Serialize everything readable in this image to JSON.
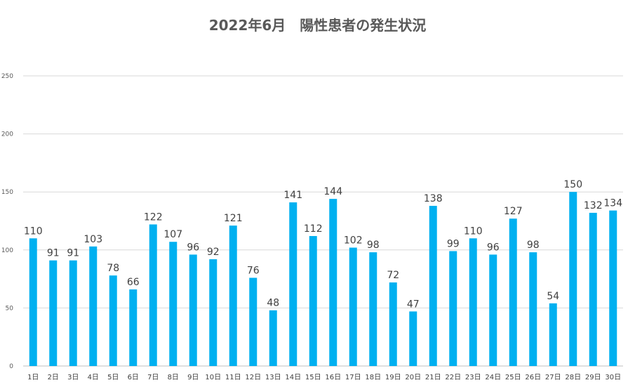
{
  "chart_data": {
    "type": "bar",
    "title": "2022年6月　陽性患者の発生状況",
    "xlabel": "",
    "ylabel": "",
    "ylim": [
      0,
      250
    ],
    "yticks": [
      0,
      50,
      100,
      150,
      200,
      250
    ],
    "grid": true,
    "legend": "none",
    "bar_color": "#00b0f0",
    "categories": [
      "1日",
      "2日",
      "3日",
      "4日",
      "5日",
      "6日",
      "7日",
      "8日",
      "9日",
      "10日",
      "11日",
      "12日",
      "13日",
      "14日",
      "15日",
      "16日",
      "17日",
      "18日",
      "19日",
      "20日",
      "21日",
      "22日",
      "23日",
      "24日",
      "25日",
      "26日",
      "27日",
      "28日",
      "29日",
      "30日"
    ],
    "values": [
      110,
      91,
      91,
      103,
      78,
      66,
      122,
      107,
      96,
      92,
      121,
      76,
      48,
      141,
      112,
      144,
      102,
      98,
      72,
      47,
      138,
      99,
      110,
      96,
      127,
      98,
      54,
      150,
      132,
      134
    ]
  }
}
